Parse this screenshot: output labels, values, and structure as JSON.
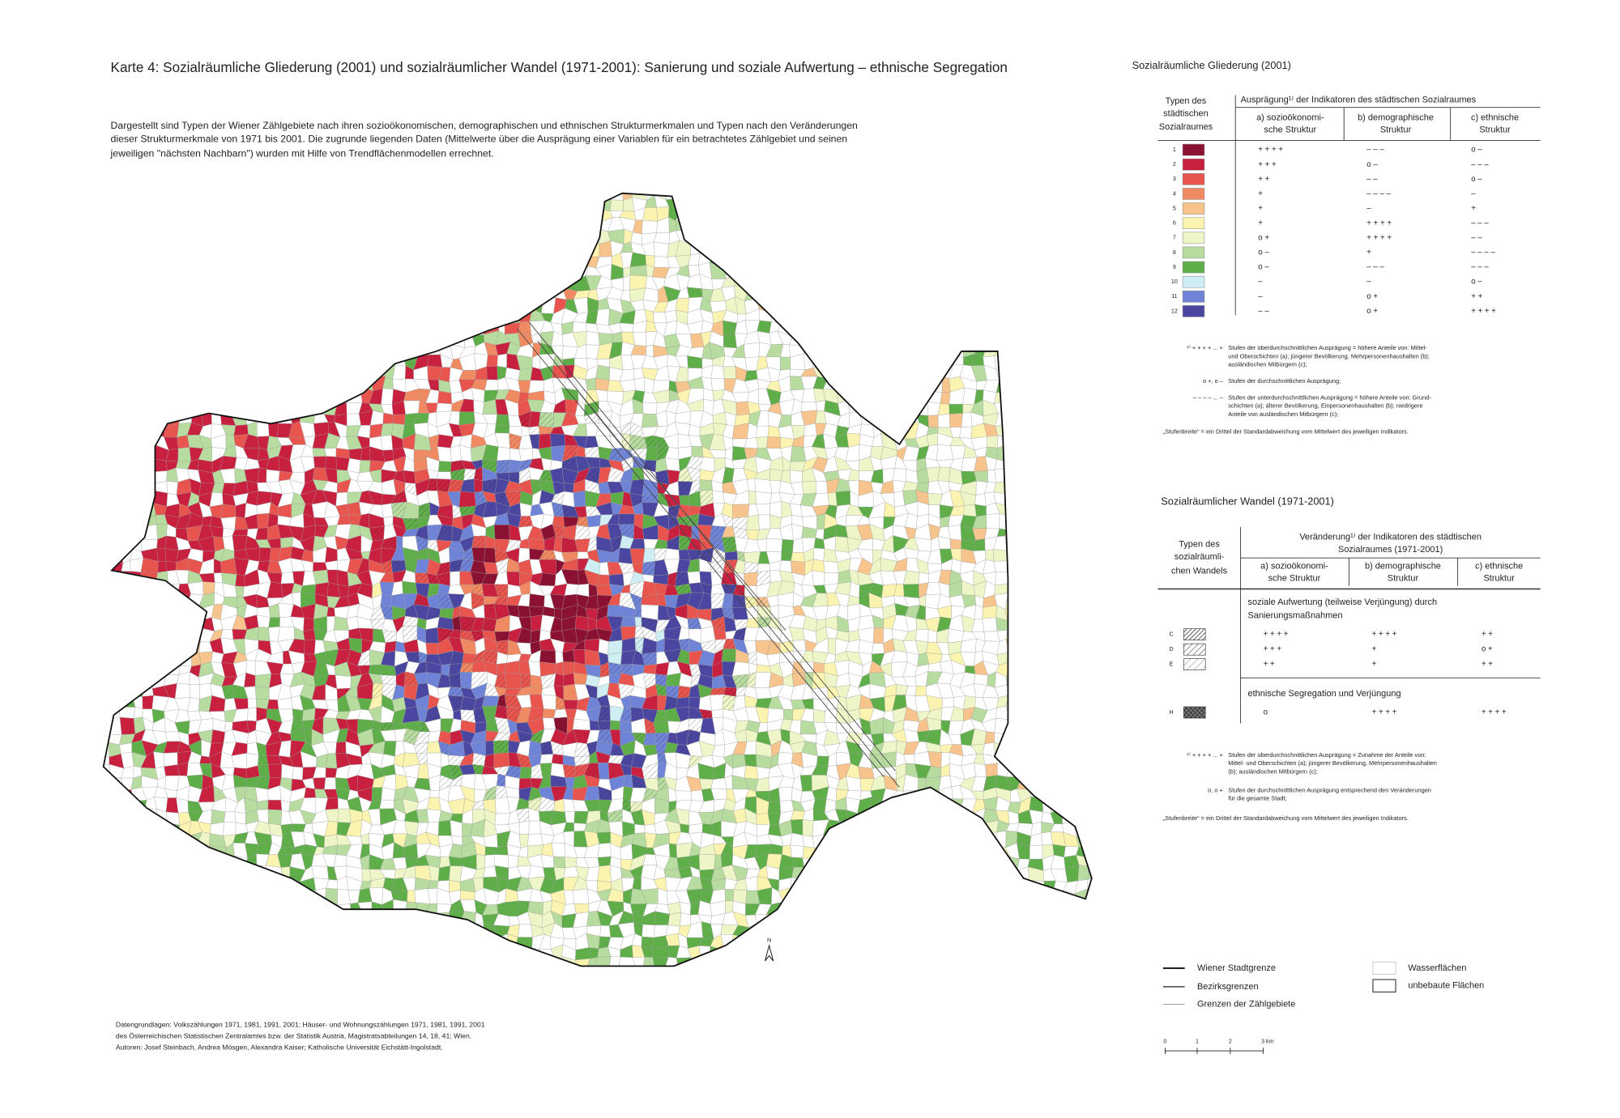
{
  "title": "Karte 4:  Sozialräumliche Gliederung (2001) und sozialräumlicher Wandel (1971-2001): Sanierung und soziale Aufwertung – ethnische Segregation",
  "description": [
    "Dargestellt sind Typen der Wiener Zählgebiete nach ihren sozioökonomischen, demographischen  und ethnischen Strukturmerkmalen und Typen nach den Veränderungen",
    "dieser Strukturmerkmale von 1971 bis 2001. Die zugrunde liegenden Daten (Mittelwerte über die Ausprägung einer Variablen für ein betrachtetes Zählgebiet und seinen",
    "jeweiligen \"nächsten Nachbarn\") wurden mit Hilfe von Trendflächenmodellen errechnet."
  ],
  "sources": [
    "Datengrundlagen:  Volkszählungen 1971, 1981, 1991, 2001; Häuser- und Wohnungszählungen 1971, 1981, 1991, 2001",
    "des Österreichischen Statistischen Zentralamtes bzw. der Statistik Austria, Magistratsabteilungen 14, 18, 41; Wien.",
    "Autoren:  Josef Steinbach, Andrea Mösgen, Alexandra Kaiser; Katholische Universität Eichstätt-Ingolstadt."
  ],
  "north": "N",
  "structure_legend": {
    "title": "Sozialräumliche Gliederung (2001)",
    "type_header": [
      "Typen des",
      "städtischen",
      "Sozialraumes"
    ],
    "indicator_header": "Ausprägung¹⁾ der Indikatoren des städtischen Sozialraumes",
    "columns": [
      [
        "a) sozioökonomi-",
        "sche Struktur"
      ],
      [
        "b) demographische",
        "Struktur"
      ],
      [
        "c) ethnische",
        "Struktur"
      ]
    ],
    "rows": [
      {
        "type": "1",
        "color": "#8a1131",
        "a": "+ + + +",
        "b": "– – –",
        "c": "o –"
      },
      {
        "type": "2",
        "color": "#c8203f",
        "a": "+ + +",
        "b": "o –",
        "c": "– – –"
      },
      {
        "type": "3",
        "color": "#e8554e",
        "a": "+ +",
        "b": "– –",
        "c": "o –"
      },
      {
        "type": "4",
        "color": "#f08a62",
        "a": "+",
        "b": "– – – –",
        "c": "–"
      },
      {
        "type": "5",
        "color": "#f6c48c",
        "a": "+",
        "b": "–",
        "c": "+"
      },
      {
        "type": "6",
        "color": "#fbf3b0",
        "a": "+",
        "b": "+ + + +",
        "c": "– – –"
      },
      {
        "type": "7",
        "color": "#eef6c8",
        "a": "o +",
        "b": "+ + + +",
        "c": "– –"
      },
      {
        "type": "8",
        "color": "#b8dba0",
        "a": "o –",
        "b": "+",
        "c": "– – – –"
      },
      {
        "type": "9",
        "color": "#5fae4a",
        "a": "o –",
        "b": "– – –",
        "c": "– – –"
      },
      {
        "type": "10",
        "color": "#cfeef3",
        "a": "–",
        "b": "–",
        "c": "o –"
      },
      {
        "type": "11",
        "color": "#6f84d6",
        "a": "–",
        "b": "o +",
        "c": "+ +"
      },
      {
        "type": "12",
        "color": "#4b47a0",
        "a": "– –",
        "b": "o +",
        "c": "+ + + +"
      }
    ],
    "notes": [
      {
        "symbol": "¹⁾ + + + + ... +",
        "text": [
          "Stufen der überdurchschnittlichen Ausprägung = höhere Anteile von: Mittel-",
          "und Oberschichten (a); jüngerer Bevölkerung, Mehrpersonenhaushalten (b);",
          "ausländischen Mitbürgern (c);"
        ]
      },
      {
        "symbol": "o +, o –",
        "text": [
          "Stufen der durchschnittlichen Ausprägung;"
        ]
      },
      {
        "symbol": "– – – – ... –",
        "text": [
          "Stufen der unterdurchschnittlichen Ausprägung = höhere Anteile von: Grund-",
          "schichten (a); älterer Bevölkerung, Einpersonenhaushalten (b); niedrigere",
          "Anteile von ausländischen Mitbürgern (c);"
        ]
      }
    ],
    "footnote": "„Stufenbreite“ = ein Drittel der Standardabweichung vom Mittelwert des jeweiligen Indikators."
  },
  "change_legend": {
    "title": "Sozialräumlicher Wandel (1971-2001)",
    "type_header": [
      "Typen des",
      "sozialräumli-",
      "chen Wandels"
    ],
    "indicator_header": [
      "Veränderung¹⁾ der Indikatoren des städtischen",
      "Sozialraumes (1971-2001)"
    ],
    "columns": [
      [
        "a) sozioökonomi-",
        "sche Struktur"
      ],
      [
        "b) demographische",
        "Struktur"
      ],
      [
        "c) ethnische",
        "Struktur"
      ]
    ],
    "groups": [
      {
        "heading": [
          "soziale Aufwertung (teilweise Verjüngung) durch",
          "Sanierungsmaßnahmen"
        ],
        "rows": [
          {
            "type": "C",
            "pattern": "hatch-dense",
            "a": "+ + + +",
            "b": "+ + + +",
            "c": "+ +"
          },
          {
            "type": "D",
            "pattern": "hatch-medium",
            "a": "+ + +",
            "b": "+",
            "c": "o +"
          },
          {
            "type": "E",
            "pattern": "hatch-sparse",
            "a": "+ +",
            "b": "+",
            "c": "+ +"
          }
        ]
      },
      {
        "heading": [
          "ethnische Segregation und Verjüngung"
        ],
        "rows": [
          {
            "type": "H",
            "pattern": "cross",
            "a": "o",
            "b": "+ + + +",
            "c": "+ + + +"
          }
        ]
      }
    ],
    "notes": [
      {
        "symbol": "¹⁾ + + + + ... +",
        "text": [
          "Stufen der überdurchschnittlichen Ausprägung = Zunahme der Anteile von:",
          "Mittel- und Oberschichten (a); jüngerer Bevölkerung, Mehrpersonenhaushalten",
          "(b); ausländischen Mitbürgern (c);"
        ]
      },
      {
        "symbol": "o, o +",
        "text": [
          "Stufen der durchschnittlichen Ausprägung entsprechend den Veränderungen",
          "für die gesamte Stadt;"
        ]
      }
    ],
    "footnote": "„Stufenbreite“ = ein Drittel der Standardabweichung vom Mittelwert des jeweiligen Indikators."
  },
  "map_legend": {
    "lines": [
      "Wiener Stadtgrenze",
      "Bezirksgrenzen",
      "Grenzen der Zählgebiete"
    ],
    "areas": [
      "Wasserflächen",
      "unbebaute Flächen"
    ]
  },
  "scale_bar": [
    "0",
    "1",
    "2",
    "3 km"
  ]
}
